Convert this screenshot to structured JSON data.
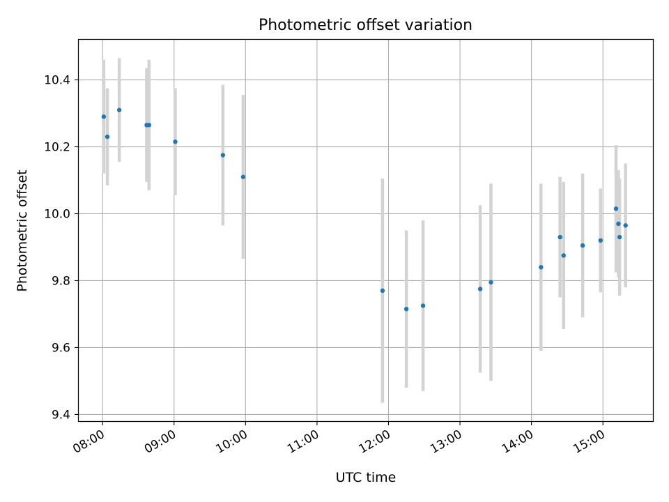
{
  "chart_data": {
    "type": "scatter",
    "title": "Photometric offset variation",
    "xlabel": "UTC time",
    "ylabel": "Photometric offset",
    "x_ticks": [
      "08:00",
      "09:00",
      "10:00",
      "11:00",
      "12:00",
      "13:00",
      "14:00",
      "15:00"
    ],
    "y_ticks": [
      "9.4",
      "9.6",
      "9.8",
      "10.0",
      "10.2",
      "10.4"
    ],
    "xlim": [
      "07:40",
      "15:42"
    ],
    "ylim": [
      9.38,
      10.52
    ],
    "grid": true,
    "colors": {
      "point": "#1f77b4",
      "errorbar": "#d3d3d3",
      "grid": "#b0b0b0"
    },
    "points": [
      {
        "time": "08:01",
        "y": 10.29,
        "err": 0.17
      },
      {
        "time": "08:04",
        "y": 10.23,
        "err": 0.145
      },
      {
        "time": "08:14",
        "y": 10.31,
        "err": 0.155
      },
      {
        "time": "08:37",
        "y": 10.265,
        "err": 0.17
      },
      {
        "time": "08:39",
        "y": 10.265,
        "err": 0.195
      },
      {
        "time": "09:01",
        "y": 10.215,
        "err": 0.16
      },
      {
        "time": "09:41",
        "y": 10.175,
        "err": 0.21
      },
      {
        "time": "09:58",
        "y": 10.11,
        "err": 0.245
      },
      {
        "time": "11:55",
        "y": 9.77,
        "err": 0.335
      },
      {
        "time": "12:15",
        "y": 9.715,
        "err": 0.235
      },
      {
        "time": "12:29",
        "y": 9.725,
        "err": 0.255
      },
      {
        "time": "13:17",
        "y": 9.775,
        "err": 0.25
      },
      {
        "time": "13:26",
        "y": 9.795,
        "err": 0.295
      },
      {
        "time": "14:08",
        "y": 9.84,
        "err": 0.25
      },
      {
        "time": "14:24",
        "y": 9.93,
        "err": 0.18
      },
      {
        "time": "14:27",
        "y": 9.875,
        "err": 0.22
      },
      {
        "time": "14:43",
        "y": 9.905,
        "err": 0.215
      },
      {
        "time": "14:58",
        "y": 9.92,
        "err": 0.155
      },
      {
        "time": "15:11",
        "y": 10.015,
        "err": 0.19
      },
      {
        "time": "15:13",
        "y": 9.97,
        "err": 0.16
      },
      {
        "time": "15:14",
        "y": 9.93,
        "err": 0.175
      },
      {
        "time": "15:19",
        "y": 9.965,
        "err": 0.185
      }
    ]
  }
}
